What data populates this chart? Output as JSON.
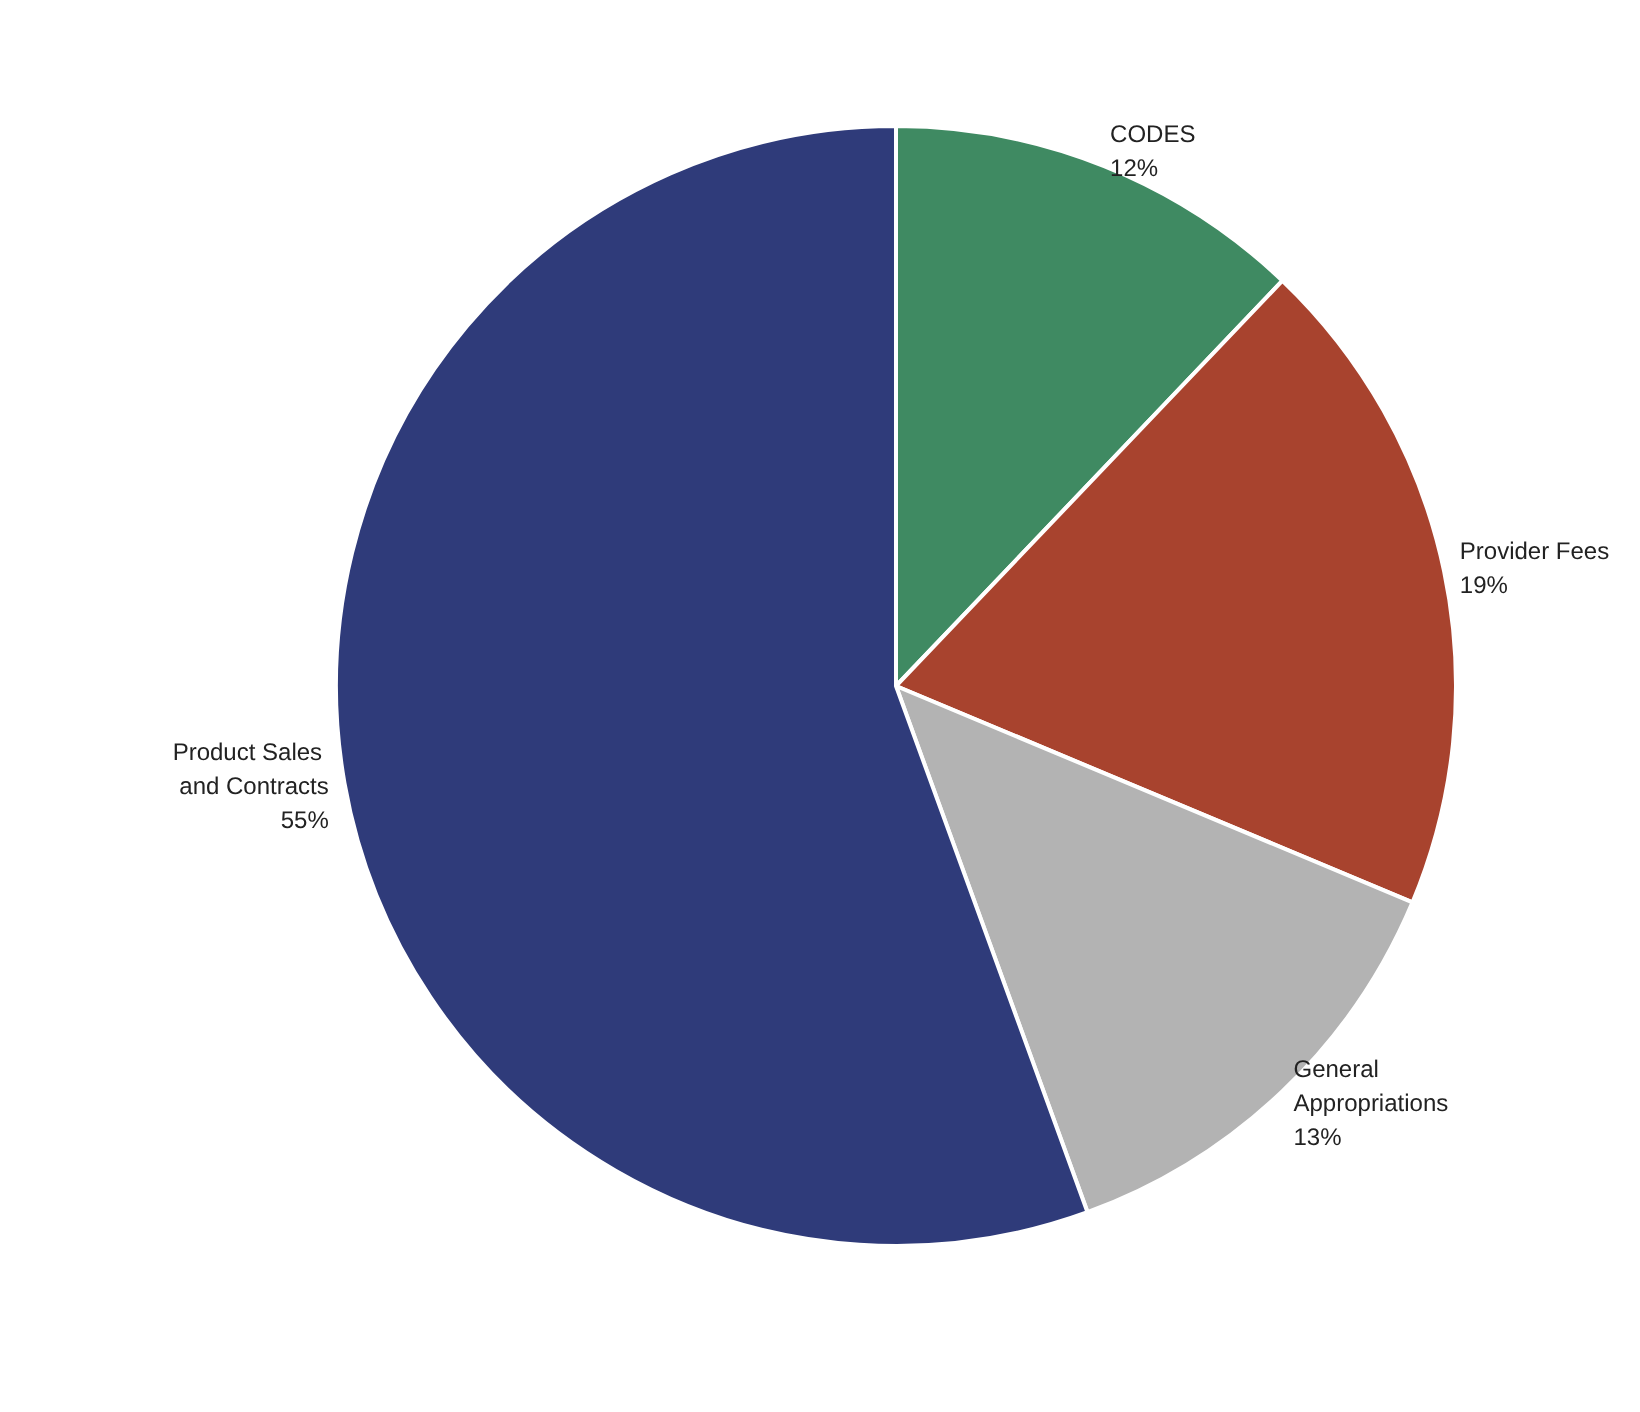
{
  "chart_data": {
    "type": "pie",
    "categories": [
      "CODES",
      "Provider Fees",
      "General Appropriations",
      "Product Sales and Contracts"
    ],
    "values": [
      12,
      19,
      13,
      55
    ],
    "colors": [
      "#3f8a62",
      "#a8432e",
      "#b3b3b3",
      "#2f3b7a"
    ],
    "value_labels": [
      "12%",
      "19%",
      "13%",
      "55%"
    ],
    "legend": false
  }
}
